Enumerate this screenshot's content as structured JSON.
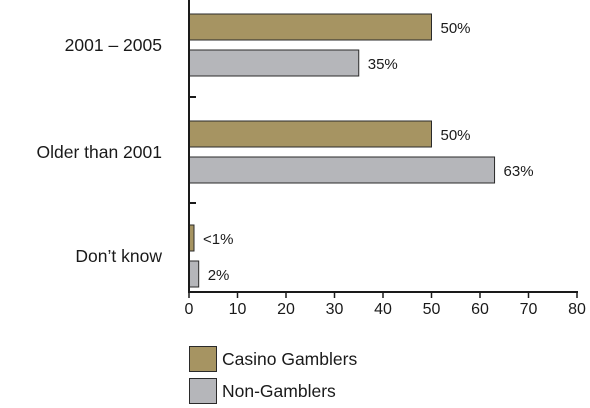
{
  "chart_data": {
    "type": "bar",
    "orientation": "horizontal",
    "categories": [
      "2001 – 2005",
      "Older than 2001",
      "Don’t know"
    ],
    "series": [
      {
        "name": "Casino Gamblers",
        "color": "#a69462",
        "values": [
          50,
          50,
          1
        ],
        "value_labels": [
          "50%",
          "50%",
          "<1%"
        ]
      },
      {
        "name": "Non-Gamblers",
        "color": "#b5b6ba",
        "values": [
          35,
          63,
          2
        ],
        "value_labels": [
          "35%",
          "63%",
          "2%"
        ]
      }
    ],
    "xlim": [
      0,
      80
    ],
    "xticks": [
      "0",
      "10",
      "20",
      "30",
      "40",
      "50",
      "60",
      "70",
      "80"
    ],
    "xlabel": "",
    "ylabel": "",
    "grid": false,
    "legend_position": "bottom"
  }
}
